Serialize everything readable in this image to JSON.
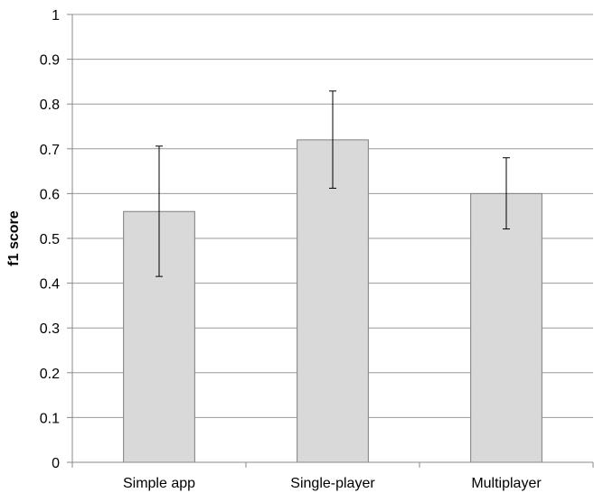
{
  "chart_data": {
    "type": "bar",
    "title": "",
    "xlabel": "",
    "ylabel": "f1 score",
    "ylim": [
      0,
      1
    ],
    "yticks": [
      "0",
      "0.1",
      "0.2",
      "0.3",
      "0.4",
      "0.5",
      "0.6",
      "0.7",
      "0.8",
      "0.9",
      "1"
    ],
    "grid": true,
    "legend": "none",
    "categories": [
      "Simple app",
      "Single-player",
      "Multiplayer"
    ],
    "values": [
      0.56,
      0.72,
      0.6
    ],
    "error_bars": [
      {
        "lower": 0.415,
        "upper": 0.706
      },
      {
        "lower": 0.612,
        "upper": 0.829
      },
      {
        "lower": 0.521,
        "upper": 0.68
      }
    ],
    "colors": {
      "bar_fill": "#d9d9d9",
      "bar_stroke": "#7f7f7f",
      "grid": "#999999",
      "axis": "#888888",
      "error_bar": "#000000"
    }
  }
}
